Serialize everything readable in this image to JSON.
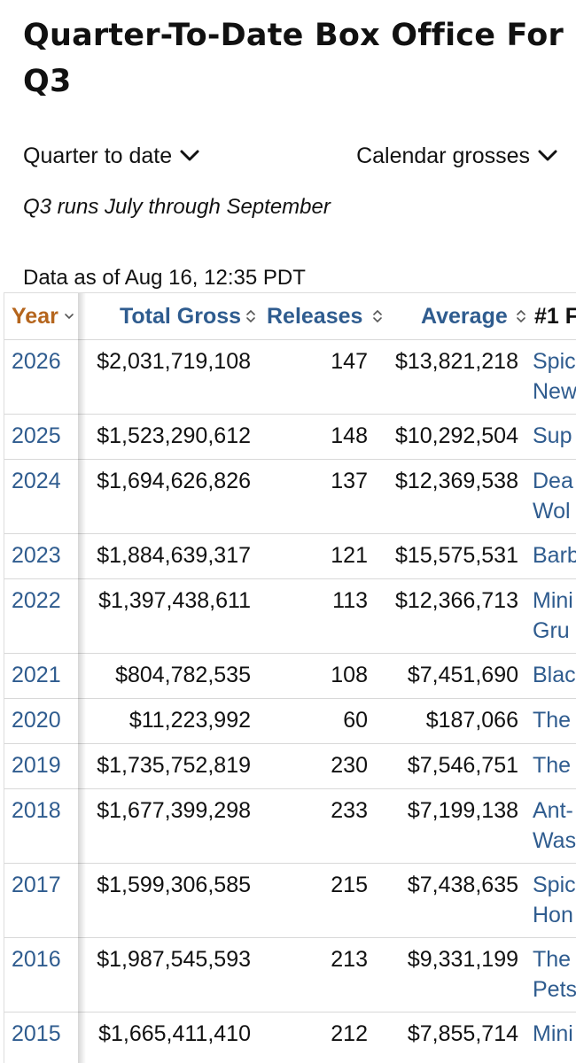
{
  "page": {
    "title": "Quarter-To-Date Box Office For Q3"
  },
  "filters": {
    "period": "Quarter to date",
    "grosses": "Calendar grosses"
  },
  "note": "Q3 runs July through September",
  "data_as_of": "Data as of Aug 16, 12:35 PDT",
  "table": {
    "columns": [
      "Year",
      "Total Gross",
      "Releases",
      "Average",
      "#1 F"
    ],
    "rows": [
      {
        "year": "2026",
        "gross": "$2,031,719,108",
        "releases": "147",
        "average": "$13,821,218",
        "movie": [
          "Spic",
          "New"
        ]
      },
      {
        "year": "2025",
        "gross": "$1,523,290,612",
        "releases": "148",
        "average": "$10,292,504",
        "movie": [
          "Sup"
        ]
      },
      {
        "year": "2024",
        "gross": "$1,694,626,826",
        "releases": "137",
        "average": "$12,369,538",
        "movie": [
          "Dea",
          "Wol"
        ]
      },
      {
        "year": "2023",
        "gross": "$1,884,639,317",
        "releases": "121",
        "average": "$15,575,531",
        "movie": [
          "Barb"
        ]
      },
      {
        "year": "2022",
        "gross": "$1,397,438,611",
        "releases": "113",
        "average": "$12,366,713",
        "movie": [
          "Mini",
          "Gru"
        ]
      },
      {
        "year": "2021",
        "gross": "$804,782,535",
        "releases": "108",
        "average": "$7,451,690",
        "movie": [
          "Blac"
        ]
      },
      {
        "year": "2020",
        "gross": "$11,223,992",
        "releases": "60",
        "average": "$187,066",
        "movie": [
          "The"
        ]
      },
      {
        "year": "2019",
        "gross": "$1,735,752,819",
        "releases": "230",
        "average": "$7,546,751",
        "movie": [
          "The"
        ]
      },
      {
        "year": "2018",
        "gross": "$1,677,399,298",
        "releases": "233",
        "average": "$7,199,138",
        "movie": [
          "Ant-",
          "Was"
        ]
      },
      {
        "year": "2017",
        "gross": "$1,599,306,585",
        "releases": "215",
        "average": "$7,438,635",
        "movie": [
          "Spic",
          "Hon"
        ]
      },
      {
        "year": "2016",
        "gross": "$1,987,545,593",
        "releases": "213",
        "average": "$9,331,199",
        "movie": [
          "The",
          "Pets"
        ]
      },
      {
        "year": "2015",
        "gross": "$1,665,411,410",
        "releases": "212",
        "average": "$7,855,714",
        "movie": [
          "Mini"
        ]
      }
    ]
  },
  "colors": {
    "link": "#2f5c8f",
    "active_sort": "#b5651d",
    "row_border": "#d8d8d8"
  },
  "icons": {
    "filter_period": "chevron-down-icon",
    "filter_grosses": "chevron-down-icon",
    "year_sort": "sort-down-icon",
    "column_sort": "sort-updown-icon"
  }
}
